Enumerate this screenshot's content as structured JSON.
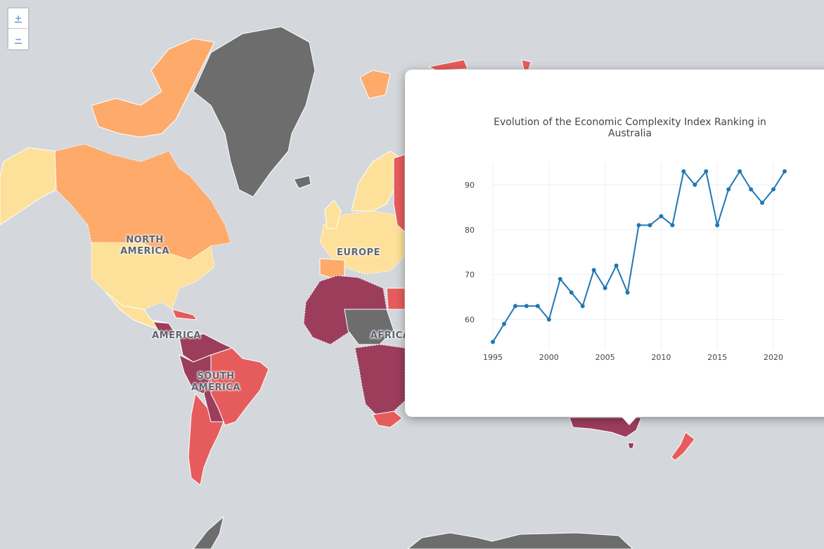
{
  "zoom": {
    "in_label": "+",
    "out_label": "−"
  },
  "regions": {
    "north_america": "NORTH\nAMERICA",
    "europe": "EUROPE",
    "central_america": "AMERICA",
    "africa": "AFRICA",
    "south_america": "SOUTH\nAMERICA"
  },
  "colors": {
    "ocean": "#d4d8dc",
    "no_data": "#6d6d6d",
    "light": "#fde19a",
    "orange": "#fdaa6b",
    "red": "#e65c5c",
    "dark": "#9c3d5c",
    "line": "#1f77b4"
  },
  "popup": {
    "title": "Evolution of the Economic Complexity Index Ranking in Australia"
  },
  "chart_data": {
    "type": "line",
    "title": "Evolution of the Economic Complexity Index Ranking in Australia",
    "xlabel": "",
    "ylabel": "",
    "x": [
      1995,
      1996,
      1997,
      1998,
      1999,
      2000,
      2001,
      2002,
      2003,
      2004,
      2005,
      2006,
      2007,
      2008,
      2009,
      2010,
      2011,
      2012,
      2013,
      2014,
      2015,
      2016,
      2017,
      2018,
      2019,
      2020,
      2021
    ],
    "series": [
      {
        "values": [
          55,
          59,
          63,
          63,
          63,
          60,
          69,
          66,
          63,
          71,
          67,
          72,
          66,
          81,
          81,
          83,
          81,
          93,
          90,
          93,
          81,
          89,
          93,
          89,
          86,
          89,
          93
        ]
      }
    ],
    "xticks": [
      1995,
      2000,
      2005,
      2010,
      2015,
      2020
    ],
    "yticks": [
      60,
      70,
      80,
      90
    ],
    "xlim": [
      1995,
      2021
    ],
    "ylim": [
      53.5,
      95
    ],
    "grid": true
  }
}
